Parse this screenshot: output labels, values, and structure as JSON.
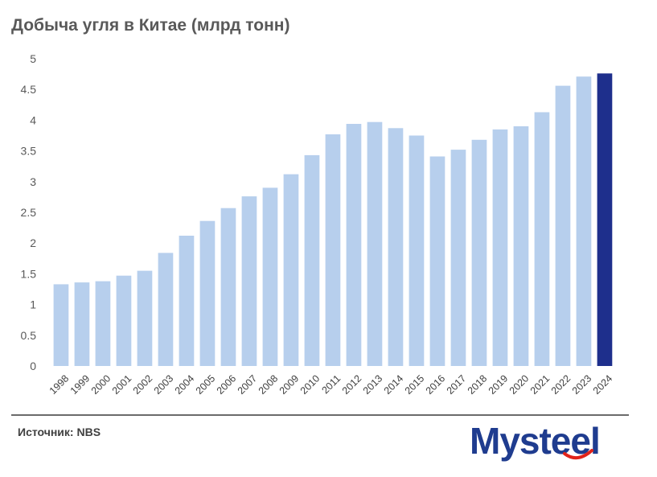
{
  "title": "Добыча угля в Китае (млрд тонн)",
  "source": "Источник: NBS",
  "logo": {
    "text": "Mysteel",
    "brand_color": "#1f3c8f",
    "accent_color": "#e2231a"
  },
  "colors": {
    "bar": "#b7cfed",
    "bar_highlight": "#1e2f8c",
    "axis_text": "#595959"
  },
  "chart_data": {
    "type": "bar",
    "title": "Добыча угля в Китае (млрд тонн)",
    "xlabel": "",
    "ylabel": "",
    "ylim": [
      0,
      5
    ],
    "yticks": [
      0,
      0.5,
      1,
      1.5,
      2,
      2.5,
      3,
      3.5,
      4,
      4.5,
      5
    ],
    "ytick_labels": [
      "0",
      "0.5",
      "1",
      "1.5",
      "2",
      "2.5",
      "3",
      "3.5",
      "4",
      "4.5",
      "5"
    ],
    "grid": false,
    "categories": [
      "1998",
      "1999",
      "2000",
      "2001",
      "2002",
      "2003",
      "2004",
      "2005",
      "2006",
      "2007",
      "2008",
      "2009",
      "2010",
      "2011",
      "2012",
      "2013",
      "2014",
      "2015",
      "2016",
      "2017",
      "2018",
      "2019",
      "2020",
      "2021",
      "2022",
      "2023",
      "2024"
    ],
    "values": [
      1.33,
      1.36,
      1.38,
      1.47,
      1.55,
      1.84,
      2.12,
      2.36,
      2.57,
      2.76,
      2.9,
      3.12,
      3.43,
      3.77,
      3.94,
      3.97,
      3.87,
      3.75,
      3.41,
      3.52,
      3.68,
      3.85,
      3.9,
      4.13,
      4.56,
      4.71,
      4.76
    ],
    "highlight_index": 26
  }
}
